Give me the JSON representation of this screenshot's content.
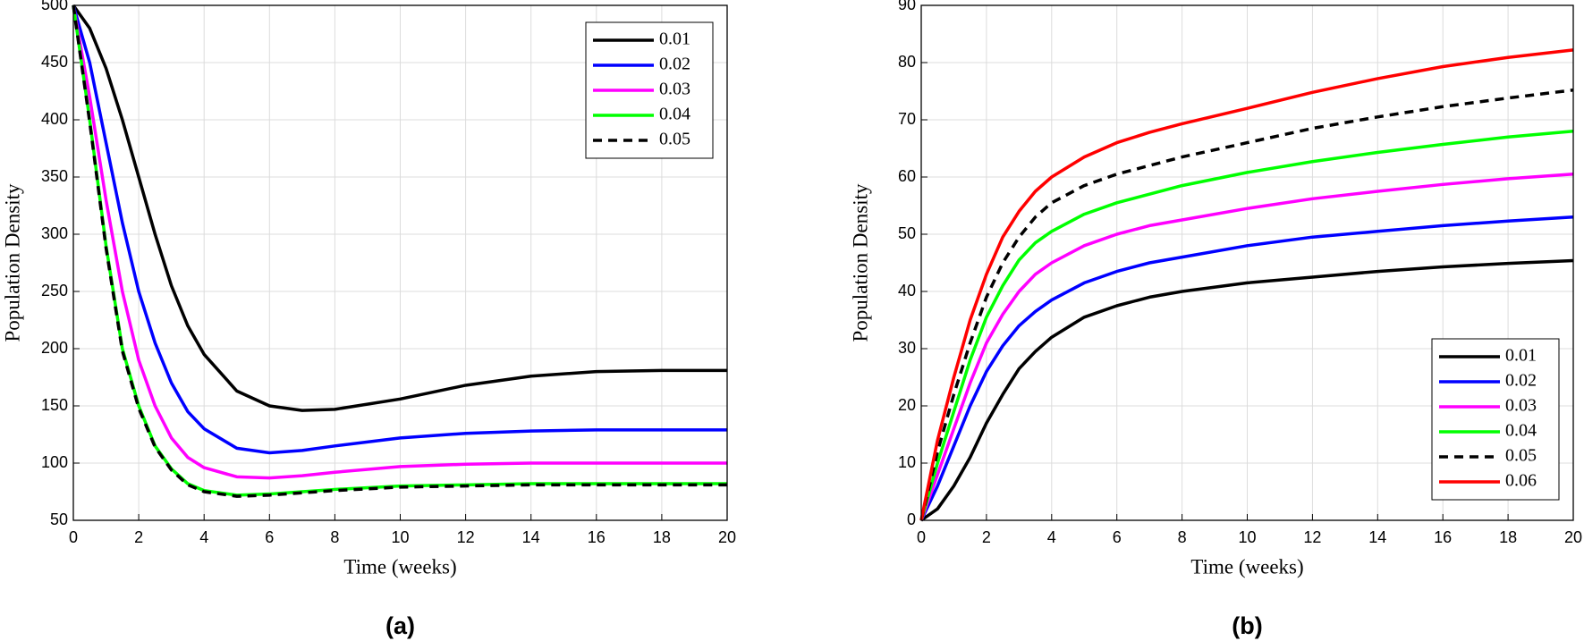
{
  "chart_data": [
    {
      "type": "line",
      "caption": "(a)",
      "x_label": "Time (weeks)",
      "y_label": "Population Density",
      "x": [
        0,
        0.5,
        1,
        1.5,
        2,
        2.5,
        3,
        3.5,
        4,
        5,
        6,
        7,
        8,
        10,
        12,
        14,
        16,
        18,
        20
      ],
      "xlim": [
        0,
        20
      ],
      "xticks": [
        0,
        2,
        4,
        6,
        8,
        10,
        12,
        14,
        16,
        18,
        20
      ],
      "ylim": [
        50,
        500
      ],
      "yticks": [
        50,
        100,
        150,
        200,
        250,
        300,
        350,
        400,
        450,
        500
      ],
      "grid": true,
      "legend": "upper right",
      "series": [
        {
          "name": "0.01",
          "color": "#000000",
          "style": "solid",
          "values": [
            500,
            480,
            445,
            400,
            350,
            300,
            255,
            220,
            195,
            163,
            150,
            146,
            147,
            156,
            168,
            176,
            180,
            181,
            181
          ]
        },
        {
          "name": "0.02",
          "color": "#0000ff",
          "style": "solid",
          "values": [
            500,
            450,
            380,
            310,
            250,
            205,
            170,
            145,
            130,
            113,
            109,
            111,
            115,
            122,
            126,
            128,
            129,
            129,
            129
          ]
        },
        {
          "name": "0.03",
          "color": "#ff00ff",
          "style": "solid",
          "values": [
            500,
            420,
            330,
            250,
            190,
            150,
            122,
            105,
            96,
            88,
            87,
            89,
            92,
            97,
            99,
            100,
            100,
            100,
            100
          ]
        },
        {
          "name": "0.04",
          "color": "#00ff00",
          "style": "solid",
          "values": [
            500,
            400,
            290,
            200,
            150,
            115,
            95,
            82,
            76,
            72,
            73,
            75,
            77,
            80,
            81,
            82,
            82,
            82,
            82
          ]
        },
        {
          "name": "0.05",
          "color": "#000000",
          "style": "dashed",
          "values": [
            500,
            398,
            288,
            198,
            148,
            114,
            94,
            81,
            75,
            71,
            72,
            74,
            76,
            79,
            80,
            81,
            81,
            81,
            81
          ]
        }
      ]
    },
    {
      "type": "line",
      "caption": "(b)",
      "x_label": "Time (weeks)",
      "y_label": "Population Density",
      "x": [
        0,
        0.5,
        1,
        1.5,
        2,
        2.5,
        3,
        3.5,
        4,
        5,
        6,
        7,
        8,
        10,
        12,
        14,
        16,
        18,
        20
      ],
      "xlim": [
        0,
        20
      ],
      "xticks": [
        0,
        2,
        4,
        6,
        8,
        10,
        12,
        14,
        16,
        18,
        20
      ],
      "ylim": [
        0,
        90
      ],
      "yticks": [
        0,
        10,
        20,
        30,
        40,
        50,
        60,
        70,
        80,
        90
      ],
      "grid": true,
      "legend": "lower right",
      "series": [
        {
          "name": "0.01",
          "color": "#000000",
          "style": "solid",
          "values": [
            0,
            2,
            6,
            11,
            17,
            22,
            26.5,
            29.5,
            32,
            35.5,
            37.5,
            39,
            40,
            41.5,
            42.5,
            43.5,
            44.3,
            44.9,
            45.4
          ]
        },
        {
          "name": "0.02",
          "color": "#0000ff",
          "style": "solid",
          "values": [
            0,
            6,
            13,
            20,
            26,
            30.5,
            34,
            36.5,
            38.5,
            41.5,
            43.5,
            45,
            46,
            48,
            49.5,
            50.5,
            51.5,
            52.3,
            53
          ]
        },
        {
          "name": "0.03",
          "color": "#ff00ff",
          "style": "solid",
          "values": [
            0,
            8,
            16,
            24,
            31,
            36,
            40,
            43,
            45,
            48,
            50,
            51.5,
            52.5,
            54.5,
            56.2,
            57.5,
            58.7,
            59.7,
            60.5
          ]
        },
        {
          "name": "0.04",
          "color": "#00ff00",
          "style": "solid",
          "values": [
            0,
            10,
            19,
            28,
            35.5,
            41,
            45.5,
            48.5,
            50.5,
            53.5,
            55.5,
            57,
            58.5,
            60.8,
            62.7,
            64.3,
            65.7,
            67,
            68
          ]
        },
        {
          "name": "0.05",
          "color": "#000000",
          "style": "dashed",
          "values": [
            0,
            12,
            22,
            31,
            39,
            45,
            49.5,
            53,
            55.5,
            58.5,
            60.5,
            62,
            63.5,
            66,
            68.5,
            70.5,
            72.3,
            73.8,
            75.2
          ]
        },
        {
          "name": "0.06",
          "color": "#ff0000",
          "style": "solid",
          "values": [
            0,
            14,
            25,
            35,
            43,
            49.5,
            54,
            57.5,
            60,
            63.5,
            66,
            67.8,
            69.3,
            72,
            74.8,
            77.2,
            79.3,
            80.9,
            82.2
          ]
        }
      ]
    }
  ]
}
